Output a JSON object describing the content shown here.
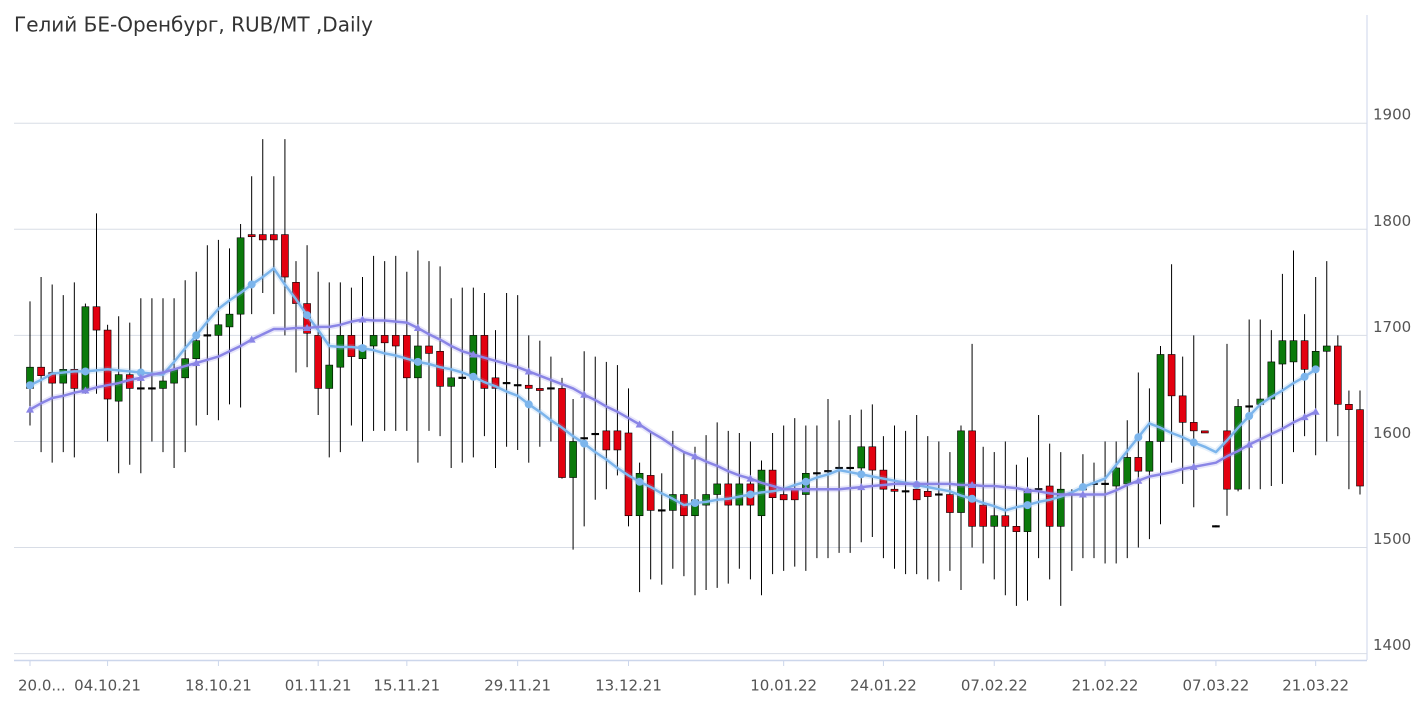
{
  "chart_data": {
    "type": "candlestick",
    "title": "Гелий БЕ-Оренбург, RUB/MT ,Daily",
    "categories": [
      "20.0...",
      null,
      null,
      null,
      null,
      null,
      null,
      "04.10.21",
      null,
      null,
      null,
      null,
      null,
      null,
      null,
      null,
      null,
      "18.10.21",
      null,
      null,
      null,
      null,
      null,
      null,
      null,
      null,
      "01.11.21",
      null,
      null,
      null,
      null,
      null,
      null,
      null,
      "15.11.21",
      null,
      null,
      null,
      null,
      null,
      null,
      null,
      null,
      null,
      "29.11.21",
      null,
      null,
      null,
      null,
      null,
      null,
      null,
      null,
      null,
      "13.12.21",
      null,
      null,
      null,
      null,
      null,
      null,
      null,
      null,
      null,
      null,
      null,
      null,
      null,
      "10.01.22",
      null,
      null,
      null,
      null,
      null,
      null,
      null,
      null,
      "24.01.22",
      null,
      null,
      null,
      null,
      null,
      null,
      null,
      null,
      null,
      "07.02.22",
      null,
      null,
      null,
      null,
      null,
      null,
      null,
      null,
      null,
      "21.02.22",
      null,
      null,
      null,
      null,
      null,
      null,
      null,
      null,
      null,
      "07.03.22",
      null,
      null,
      null,
      null,
      null,
      null,
      null,
      null,
      "21.03.22",
      null,
      null,
      null,
      null
    ],
    "open": [
      1650,
      1670,
      1665,
      1655,
      1668,
      1648,
      1727,
      1705,
      1638,
      1663,
      1650,
      1650,
      1650,
      1655,
      1660,
      1678,
      1700,
      1700,
      1708,
      1720,
      1795,
      1795,
      1795,
      1795,
      1750,
      1730,
      1700,
      1650,
      1670,
      1700,
      1678,
      1690,
      1700,
      1700,
      1700,
      1660,
      1690,
      1685,
      1652,
      1660,
      1660,
      1700,
      1660,
      1655,
      1653,
      1653,
      1650,
      1650,
      1650,
      1566,
      1603,
      1607,
      1610,
      1610,
      1608,
      1530,
      1568,
      1535,
      1535,
      1550,
      1530,
      1540,
      1550,
      1560,
      1540,
      1560,
      1530,
      1573,
      1550,
      1555,
      1550,
      1570,
      1572,
      1575,
      1575,
      1575,
      1595,
      1573,
      1555,
      1553,
      1555,
      1553,
      1550,
      1550,
      1533,
      1610,
      1540,
      1520,
      1530,
      1520,
      1515,
      1555,
      1558,
      1520,
      1550,
      1555,
      1560,
      1560,
      1558,
      1560,
      1585,
      1572,
      1600,
      1682,
      1643,
      1618,
      1610,
      1520,
      1610,
      1555,
      1633,
      1635,
      1640,
      1673,
      1675,
      1695,
      1670,
      1685,
      1690,
      1635,
      1630
    ],
    "high": [
      1732,
      1755,
      1748,
      1738,
      1750,
      1730,
      1815,
      1710,
      1718,
      1712,
      1735,
      1735,
      1735,
      1735,
      1752,
      1760,
      1785,
      1790,
      1782,
      1805,
      1850,
      1885,
      1850,
      1885,
      1770,
      1785,
      1760,
      1750,
      1750,
      1745,
      1755,
      1775,
      1770,
      1775,
      1760,
      1780,
      1770,
      1765,
      1735,
      1745,
      1745,
      1740,
      1705,
      1740,
      1738,
      1700,
      1695,
      1680,
      1660,
      1640,
      1685,
      1680,
      1675,
      1672,
      1650,
      1580,
      1610,
      1570,
      1610,
      1590,
      1595,
      1606,
      1618,
      1610,
      1608,
      1600,
      1582,
      1608,
      1615,
      1622,
      1615,
      1615,
      1640,
      1620,
      1625,
      1630,
      1635,
      1605,
      1615,
      1610,
      1625,
      1605,
      1600,
      1590,
      1615,
      1692,
      1595,
      1590,
      1600,
      1578,
      1585,
      1625,
      1598,
      1590,
      1555,
      1588,
      1580,
      1600,
      1600,
      1620,
      1665,
      1650,
      1690,
      1767,
      1680,
      1700,
      1610,
      1521,
      1692,
      1640,
      1715,
      1715,
      1705,
      1758,
      1780,
      1720,
      1755,
      1770,
      1700,
      1648,
      1648
    ],
    "low": [
      1615,
      1590,
      1580,
      1590,
      1585,
      1645,
      1645,
      1600,
      1570,
      1578,
      1570,
      1600,
      1590,
      1575,
      1590,
      1615,
      1625,
      1620,
      1635,
      1632,
      1720,
      1740,
      1720,
      1700,
      1665,
      1670,
      1625,
      1585,
      1590,
      1615,
      1600,
      1610,
      1610,
      1610,
      1610,
      1580,
      1610,
      1605,
      1575,
      1580,
      1585,
      1605,
      1575,
      1595,
      1592,
      1580,
      1595,
      1600,
      1565,
      1498,
      1520,
      1545,
      1555,
      1568,
      1520,
      1458,
      1470,
      1465,
      1480,
      1473,
      1455,
      1460,
      1462,
      1466,
      1480,
      1470,
      1455,
      1475,
      1478,
      1482,
      1478,
      1490,
      1490,
      1495,
      1495,
      1505,
      1510,
      1490,
      1480,
      1475,
      1475,
      1470,
      1468,
      1478,
      1460,
      1500,
      1485,
      1470,
      1455,
      1445,
      1450,
      1490,
      1470,
      1445,
      1478,
      1490,
      1490,
      1485,
      1485,
      1490,
      1500,
      1508,
      1522,
      1580,
      1560,
      1538,
      1608,
      1519,
      1530,
      1553,
      1555,
      1555,
      1558,
      1560,
      1590,
      1605,
      1587,
      1600,
      1605,
      1555,
      1550
    ],
    "close": [
      1670,
      1662,
      1655,
      1668,
      1650,
      1727,
      1705,
      1640,
      1663,
      1650,
      1650,
      1650,
      1657,
      1668,
      1678,
      1695,
      1700,
      1710,
      1720,
      1792,
      1793,
      1790,
      1790,
      1755,
      1730,
      1702,
      1650,
      1672,
      1700,
      1680,
      1690,
      1700,
      1693,
      1690,
      1660,
      1690,
      1683,
      1652,
      1660,
      1660,
      1700,
      1650,
      1650,
      1655,
      1653,
      1650,
      1648,
      1650,
      1566,
      1600,
      1603,
      1607,
      1592,
      1592,
      1530,
      1570,
      1535,
      1535,
      1550,
      1530,
      1545,
      1550,
      1560,
      1540,
      1560,
      1540,
      1573,
      1547,
      1545,
      1545,
      1570,
      1570,
      1572,
      1575,
      1575,
      1595,
      1573,
      1555,
      1553,
      1553,
      1545,
      1548,
      1550,
      1533,
      1610,
      1520,
      1520,
      1530,
      1520,
      1515,
      1555,
      1555,
      1520,
      1555,
      1550,
      1555,
      1560,
      1560,
      1575,
      1585,
      1572,
      1600,
      1682,
      1643,
      1618,
      1610,
      1608,
      1520,
      1555,
      1633,
      1633,
      1640,
      1675,
      1695,
      1695,
      1668,
      1685,
      1690,
      1635,
      1630,
      1558
    ],
    "up_color": "#0b7a0b",
    "down_color": "#e3000f",
    "flat_color": "#000000",
    "series": [
      {
        "color": "#7cb5ec",
        "marker": "circle",
        "values": [
          1653,
          1658,
          1664,
          1665,
          1666,
          1666,
          1667,
          1668,
          1667,
          1666,
          1665,
          1664,
          1663,
          1675,
          1688,
          1700,
          1713,
          1725,
          1733,
          1740,
          1748,
          1755,
          1763,
          1748,
          1734,
          1719,
          1705,
          1690,
          1689,
          1689,
          1688,
          1686,
          1683,
          1681,
          1678,
          1675,
          1673,
          1670,
          1668,
          1665,
          1661,
          1656,
          1652,
          1647,
          1643,
          1635,
          1628,
          1620,
          1613,
          1605,
          1598,
          1590,
          1583,
          1575,
          1568,
          1562,
          1557,
          1551,
          1546,
          1540,
          1542,
          1543,
          1545,
          1546,
          1548,
          1550,
          1552,
          1553,
          1555,
          1559,
          1562,
          1566,
          1569,
          1573,
          1571,
          1569,
          1567,
          1565,
          1563,
          1561,
          1559,
          1557,
          1555,
          1553,
          1549,
          1546,
          1542,
          1539,
          1535,
          1538,
          1540,
          1543,
          1545,
          1548,
          1552,
          1557,
          1561,
          1565,
          1578,
          1591,
          1604,
          1617,
          1613,
          1608,
          1604,
          1599,
          1595,
          1590,
          1601,
          1613,
          1624,
          1635,
          1642,
          1648,
          1655,
          1661,
          1668,
          null,
          null,
          null,
          null
        ]
      },
      {
        "color": "#8a85e6",
        "marker": "triangle",
        "values": [
          1630,
          1636,
          1641,
          1643,
          1646,
          1648,
          1651,
          1653,
          1655,
          1658,
          1660,
          1663,
          1665,
          1668,
          1671,
          1674,
          1677,
          1680,
          1685,
          1690,
          1696,
          1701,
          1706,
          1706,
          1707,
          1707,
          1708,
          1708,
          1710,
          1713,
          1715,
          1714,
          1714,
          1713,
          1712,
          1707,
          1701,
          1696,
          1690,
          1685,
          1682,
          1679,
          1676,
          1673,
          1670,
          1666,
          1662,
          1658,
          1654,
          1650,
          1644,
          1639,
          1633,
          1628,
          1622,
          1616,
          1609,
          1603,
          1596,
          1590,
          1586,
          1581,
          1577,
          1572,
          1568,
          1565,
          1561,
          1558,
          1555,
          1555,
          1555,
          1555,
          1555,
          1555,
          1556,
          1557,
          1558,
          1559,
          1560,
          1560,
          1560,
          1560,
          1560,
          1560,
          1559,
          1559,
          1558,
          1558,
          1557,
          1556,
          1554,
          1553,
          1551,
          1550,
          1550,
          1550,
          1550,
          1550,
          1554,
          1559,
          1563,
          1567,
          1569,
          1571,
          1574,
          1576,
          1578,
          1580,
          1586,
          1591,
          1597,
          1602,
          1607,
          1612,
          1618,
          1623,
          1628,
          null,
          null,
          null,
          null
        ]
      }
    ],
    "ylim": [
      1394,
      2002
    ],
    "yticks": [
      1400,
      1500,
      1600,
      1700,
      1800,
      1900
    ],
    "grid": true
  }
}
